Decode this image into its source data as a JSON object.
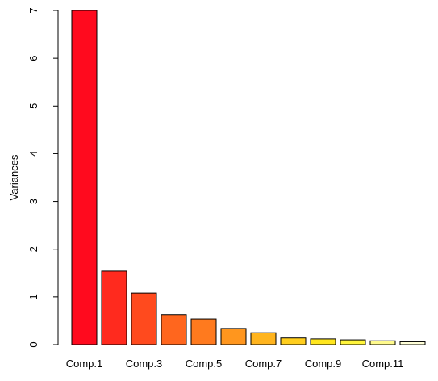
{
  "chart_data": {
    "type": "bar",
    "y_label": "Variances",
    "categories": [
      "Comp.1",
      null,
      "Comp.3",
      null,
      "Comp.5",
      null,
      "Comp.7",
      null,
      "Comp.9",
      null,
      "Comp.11",
      null
    ],
    "values": [
      7.0,
      1.54,
      1.08,
      0.63,
      0.54,
      0.34,
      0.25,
      0.14,
      0.12,
      0.1,
      0.08,
      0.06
    ],
    "colors": [
      "#FF0A1E",
      "#FF2A1E",
      "#FF4A1E",
      "#FF661E",
      "#FF7A1E",
      "#FF961E",
      "#FFB41E",
      "#FFCE1E",
      "#FFE61E",
      "#FFF53C",
      "#FFFA8C",
      "#FFFFD8"
    ],
    "ylim": [
      0,
      7
    ],
    "yticks": [
      0,
      1,
      2,
      3,
      4,
      5,
      6,
      7
    ]
  }
}
